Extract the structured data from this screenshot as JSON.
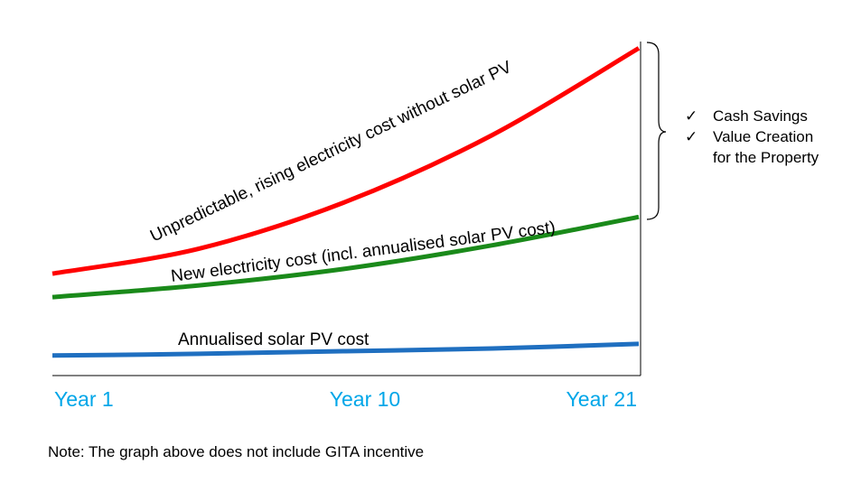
{
  "chart_data": {
    "type": "line",
    "x": [
      "Year 1",
      "Year 10",
      "Year 21"
    ],
    "xlim": [
      1,
      21
    ],
    "ylim": [
      0,
      100
    ],
    "grid": false,
    "legend": "none",
    "series": [
      {
        "name": "Unpredictable, rising electricity cost without solar PV",
        "color": "#ff0000",
        "points": [
          [
            1,
            30.5
          ],
          [
            6,
            38
          ],
          [
            11,
            52
          ],
          [
            16,
            72
          ],
          [
            21,
            98
          ]
        ]
      },
      {
        "name": "New electricity cost (incl. annualised solar PV cost)",
        "color": "#1a8a1a",
        "points": [
          [
            1,
            23.5
          ],
          [
            6,
            27
          ],
          [
            11,
            32
          ],
          [
            16,
            39
          ],
          [
            21,
            47.5
          ]
        ]
      },
      {
        "name": "Annualised solar PV cost",
        "color": "#1f6fc0",
        "points": [
          [
            1,
            6
          ],
          [
            6,
            6.5
          ],
          [
            11,
            7.3
          ],
          [
            16,
            8.1
          ],
          [
            21,
            9.5
          ]
        ]
      }
    ],
    "annotations": {
      "benefits": [
        "Cash Savings",
        "Value Creation",
        "for the Property"
      ],
      "check_glyph": "✓"
    }
  },
  "note": "Note: The graph above does not include GITA incentive"
}
